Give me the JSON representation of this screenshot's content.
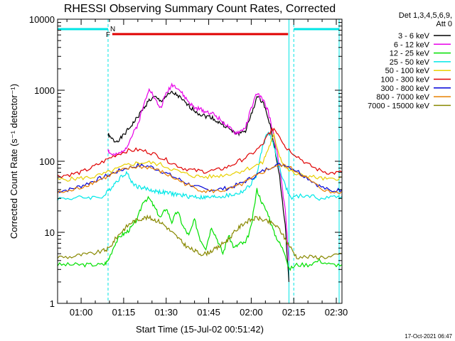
{
  "colors": {
    "background": "#ffffff",
    "axis": "#000000",
    "attenuator_marker": "#00e5e5",
    "flare_marker": "#e00000"
  },
  "chart_data": {
    "type": "line",
    "title": "RHESSI Observing Summary Count Rates, Corrected",
    "xlabel": "Start Time (15-Jul-02 00:51:42)",
    "ylabel": "Corrected Count Rate (s⁻¹ detector⁻¹)",
    "yscale": "log",
    "ylim": [
      1,
      10000
    ],
    "xlim_minutes": [
      51.7,
      152.0
    ],
    "x_ticks": [
      {
        "minute": 60,
        "label": "01:00"
      },
      {
        "minute": 75,
        "label": "01:15"
      },
      {
        "minute": 90,
        "label": "01:30"
      },
      {
        "minute": 105,
        "label": "01:45"
      },
      {
        "minute": 120,
        "label": "02:00"
      },
      {
        "minute": 135,
        "label": "02:15"
      },
      {
        "minute": 150,
        "label": "02:30"
      }
    ],
    "y_ticks": [
      {
        "value": 1,
        "label": "1"
      },
      {
        "value": 10,
        "label": "10"
      },
      {
        "value": 100,
        "label": "100"
      },
      {
        "value": 1000,
        "label": "1000"
      },
      {
        "value": 10000,
        "label": "10000"
      }
    ],
    "legend": {
      "position": "right",
      "header": [
        "Det 1,3,4,5,6,9,",
        "Att 0"
      ]
    },
    "markers": {
      "night_label": "N",
      "flare_label": "F",
      "night_intervals_minutes": [
        [
          51.7,
          69.5
        ],
        [
          135.0,
          151.0
        ]
      ],
      "flare_interval_minutes": [
        71.0,
        133.0
      ],
      "boundary_lines_minutes": [
        69.5,
        133.3,
        135.0,
        151.0
      ]
    },
    "series": [
      {
        "name": "3 - 6 keV",
        "color": "#000000",
        "x": [
          69.5,
          70,
          72,
          74,
          76,
          78,
          80,
          82,
          84,
          86,
          88,
          90,
          92,
          94,
          96,
          98,
          100,
          102,
          104,
          106,
          108,
          110,
          112,
          114,
          116,
          118,
          120,
          122,
          124,
          126,
          128,
          130,
          132,
          133.3
        ],
        "y": [
          240,
          220,
          190,
          210,
          260,
          330,
          420,
          560,
          720,
          800,
          700,
          820,
          920,
          850,
          700,
          600,
          520,
          460,
          430,
          420,
          360,
          330,
          290,
          250,
          250,
          270,
          450,
          800,
          700,
          420,
          180,
          60,
          12,
          2
        ]
      },
      {
        "name": "6 - 12 keV",
        "color": "#e800e8",
        "x": [
          69.5,
          70,
          72,
          74,
          76,
          78,
          80,
          82,
          84,
          86,
          88,
          90,
          92,
          94,
          96,
          98,
          100,
          102,
          104,
          106,
          108,
          110,
          112,
          114,
          116,
          118,
          120,
          122,
          124,
          126,
          128,
          130,
          132,
          133.3
        ],
        "y": [
          150,
          130,
          120,
          130,
          160,
          230,
          330,
          600,
          1100,
          750,
          560,
          900,
          1200,
          1100,
          850,
          680,
          560,
          540,
          500,
          480,
          420,
          360,
          300,
          250,
          260,
          300,
          560,
          900,
          750,
          500,
          230,
          80,
          20,
          4
        ]
      },
      {
        "name": "12 - 25 keV",
        "color": "#00e000",
        "x": [
          51.7,
          56,
          60,
          64,
          68,
          69.5,
          72,
          74,
          76,
          78,
          80,
          82,
          84,
          86,
          88,
          90,
          92,
          94,
          96,
          98,
          100,
          102,
          104,
          106,
          108,
          110,
          112,
          114,
          116,
          118,
          120,
          122,
          124,
          126,
          128,
          130,
          132,
          133.3,
          136,
          140,
          144,
          148,
          152
        ],
        "y": [
          3.5,
          3.5,
          3.5,
          3.5,
          3.5,
          4,
          7,
          9,
          10,
          12,
          16,
          28,
          30,
          22,
          16,
          22,
          14,
          20,
          12,
          9,
          15,
          8,
          6,
          12,
          8,
          5,
          9,
          6,
          7,
          7,
          12,
          40,
          25,
          18,
          10,
          7,
          5,
          3,
          3.5,
          3.5,
          4,
          3.5,
          3.5
        ]
      },
      {
        "name": "25 - 50 keV",
        "color": "#00e8e8",
        "x": [
          51.7,
          56,
          60,
          64,
          68,
          70,
          72,
          74,
          76,
          78,
          80,
          82,
          84,
          86,
          88,
          90,
          92,
          94,
          96,
          98,
          100,
          102,
          104,
          106,
          108,
          110,
          112,
          114,
          116,
          118,
          120,
          122,
          124,
          126,
          128,
          130,
          132,
          134,
          136,
          140,
          144,
          148,
          152
        ],
        "y": [
          30,
          30,
          31,
          31,
          32,
          40,
          50,
          60,
          70,
          50,
          44,
          42,
          40,
          38,
          37,
          36,
          35,
          34,
          33,
          32,
          32,
          31,
          31,
          31,
          32,
          32,
          33,
          34,
          36,
          40,
          48,
          65,
          160,
          270,
          160,
          80,
          45,
          30,
          32,
          33,
          30,
          31,
          32
        ]
      },
      {
        "name": "50 - 100 keV",
        "color": "#e8d000",
        "x": [
          51.7,
          56,
          60,
          64,
          68,
          72,
          76,
          80,
          84,
          88,
          92,
          96,
          100,
          104,
          108,
          112,
          116,
          120,
          124,
          126,
          128,
          130,
          132,
          136,
          140,
          144,
          148,
          152
        ],
        "y": [
          55,
          56,
          58,
          60,
          66,
          76,
          88,
          95,
          96,
          90,
          78,
          68,
          62,
          60,
          62,
          66,
          72,
          82,
          95,
          150,
          230,
          120,
          80,
          65,
          62,
          58,
          55,
          60
        ]
      },
      {
        "name": "100 - 300 keV",
        "color": "#e00000",
        "x": [
          51.7,
          56,
          60,
          64,
          68,
          72,
          76,
          80,
          84,
          88,
          92,
          96,
          100,
          104,
          108,
          112,
          116,
          120,
          124,
          126,
          128,
          130,
          132,
          136,
          140,
          144,
          148,
          152
        ],
        "y": [
          62,
          65,
          70,
          82,
          100,
          122,
          140,
          145,
          135,
          115,
          95,
          80,
          74,
          72,
          75,
          84,
          102,
          125,
          170,
          240,
          290,
          230,
          160,
          120,
          90,
          75,
          68,
          70
        ]
      },
      {
        "name": "300 - 800 keV",
        "color": "#0000d8",
        "x": [
          51.7,
          56,
          60,
          64,
          68,
          72,
          76,
          80,
          84,
          88,
          92,
          96,
          100,
          104,
          108,
          112,
          116,
          120,
          124,
          128,
          132,
          136,
          140,
          144,
          148,
          152
        ],
        "y": [
          38,
          40,
          45,
          52,
          60,
          70,
          80,
          87,
          85,
          74,
          62,
          52,
          44,
          40,
          40,
          42,
          48,
          58,
          72,
          88,
          90,
          74,
          58,
          45,
          38,
          40
        ]
      },
      {
        "name": "800 - 7000 keV",
        "color": "#e88000",
        "x": [
          51.7,
          56,
          60,
          64,
          68,
          72,
          76,
          80,
          84,
          88,
          92,
          96,
          100,
          104,
          108,
          112,
          116,
          120,
          124,
          128,
          132,
          136,
          140,
          144,
          148,
          152
        ],
        "y": [
          36,
          38,
          43,
          50,
          58,
          68,
          78,
          84,
          82,
          72,
          60,
          50,
          42,
          38,
          38,
          40,
          46,
          56,
          70,
          85,
          87,
          72,
          56,
          43,
          36,
          38
        ]
      },
      {
        "name": "7000 - 15000 keV",
        "color": "#888800",
        "x": [
          51.7,
          56,
          60,
          64,
          68,
          70,
          72,
          74,
          76,
          78,
          80,
          82,
          84,
          86,
          88,
          90,
          92,
          94,
          96,
          98,
          100,
          102,
          104,
          106,
          108,
          110,
          112,
          114,
          116,
          118,
          120,
          122,
          124,
          126,
          128,
          130,
          132,
          134,
          136,
          140,
          144,
          148,
          152
        ],
        "y": [
          4.5,
          4.5,
          4.8,
          5,
          5.5,
          6,
          8,
          10,
          12,
          14,
          15,
          16,
          16,
          15,
          14,
          12,
          10,
          8.5,
          7,
          6,
          5.5,
          5,
          5,
          5.5,
          6,
          7,
          8,
          10,
          12,
          14,
          15,
          16,
          15,
          14,
          13,
          11,
          8,
          6,
          4.5,
          4.5,
          4.5,
          4.5,
          5
        ]
      }
    ]
  },
  "stamp": "17-Oct-2021 06:47"
}
